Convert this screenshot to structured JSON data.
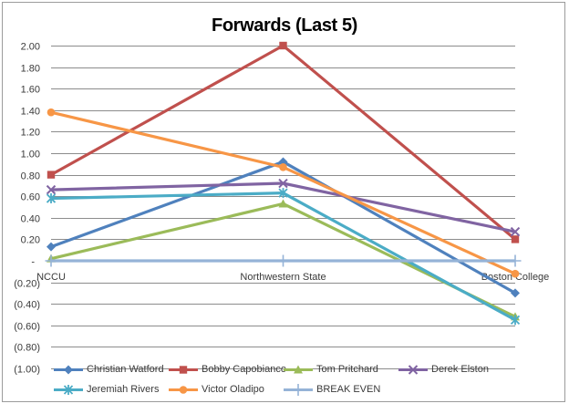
{
  "title": "Forwards (Last 5)",
  "chart_data": {
    "type": "line",
    "title": "Forwards (Last 5)",
    "categories": [
      "NCCU",
      "Northwestern State",
      "Boston College"
    ],
    "series": [
      {
        "name": "Christian Watford",
        "color": "#4F81BD",
        "marker": "diamond",
        "values": [
          0.13,
          0.92,
          -0.3
        ]
      },
      {
        "name": "Bobby Capobianco",
        "color": "#C0504D",
        "marker": "square",
        "values": [
          0.8,
          2.0,
          0.2
        ]
      },
      {
        "name": "Tom Pritchard",
        "color": "#9BBB59",
        "marker": "triangle",
        "values": [
          0.02,
          0.53,
          -0.52
        ]
      },
      {
        "name": "Derek Elston",
        "color": "#8064A2",
        "marker": "x",
        "values": [
          0.66,
          0.72,
          0.27
        ]
      },
      {
        "name": "Jeremiah Rivers",
        "color": "#4BACC6",
        "marker": "asterisk",
        "values": [
          0.58,
          0.63,
          -0.55
        ]
      },
      {
        "name": "Victor Oladipo",
        "color": "#F79646",
        "marker": "circle",
        "values": [
          1.38,
          0.87,
          -0.12
        ]
      },
      {
        "name": "BREAK EVEN",
        "color": "#95B3D7",
        "marker": "plus",
        "values": [
          0.0,
          0.0,
          0.0
        ]
      }
    ],
    "y_axis": {
      "min": -1.0,
      "max": 2.0,
      "step": 0.2,
      "tick_labels": [
        "2.00",
        "1.80",
        "1.60",
        "1.40",
        "1.20",
        "1.00",
        "0.80",
        "0.60",
        "0.40",
        "0.20",
        "-",
        "(0.20)",
        "(0.40)",
        "(0.60)",
        "(0.80)",
        "(1.00)"
      ]
    },
    "grid": true,
    "legend_position": "bottom",
    "legend_rows": [
      [
        "Christian Watford",
        "Bobby Capobianco",
        "Tom Pritchard",
        "Derek Elston"
      ],
      [
        "Jeremiah Rivers",
        "Victor Oladipo",
        "BREAK EVEN"
      ]
    ]
  },
  "colors": {
    "grid": "#8c8c8c",
    "axis_text": "#3a3a3a",
    "title_text": "#000000",
    "frame_border": "#9b9b9b"
  }
}
